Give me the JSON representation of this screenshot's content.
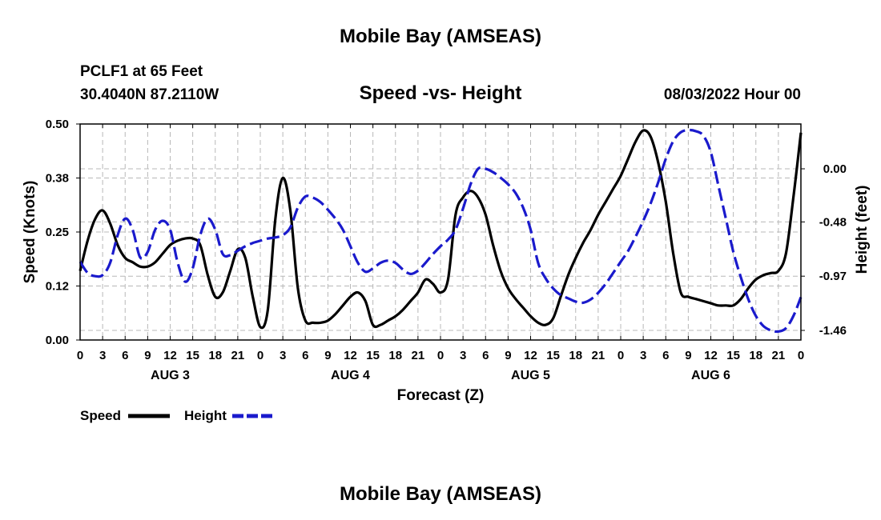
{
  "header": {
    "title": "Mobile Bay (AMSEAS)",
    "station": "PCLF1 at 65 Feet",
    "coords": "30.4040N  87.2110W",
    "date": "08/03/2022 Hour 00",
    "footer_title": "Mobile Bay (AMSEAS)"
  },
  "chart_data": {
    "type": "line",
    "title": "Speed -vs- Height",
    "xlabel": "Forecast (Z)",
    "ylabel": "Speed (Knots)",
    "y2label": "Height (feet)",
    "x_range_hours": [
      0,
      96
    ],
    "x_ticks": [
      {
        "h": 0,
        "label": "0"
      },
      {
        "h": 3,
        "label": "3"
      },
      {
        "h": 6,
        "label": "6"
      },
      {
        "h": 9,
        "label": "9"
      },
      {
        "h": 12,
        "label": "12"
      },
      {
        "h": 15,
        "label": "15"
      },
      {
        "h": 18,
        "label": "18"
      },
      {
        "h": 21,
        "label": "21"
      },
      {
        "h": 24,
        "label": "0"
      },
      {
        "h": 27,
        "label": "3"
      },
      {
        "h": 30,
        "label": "6"
      },
      {
        "h": 33,
        "label": "9"
      },
      {
        "h": 36,
        "label": "12"
      },
      {
        "h": 39,
        "label": "15"
      },
      {
        "h": 42,
        "label": "18"
      },
      {
        "h": 45,
        "label": "21"
      },
      {
        "h": 48,
        "label": "0"
      },
      {
        "h": 51,
        "label": "3"
      },
      {
        "h": 54,
        "label": "6"
      },
      {
        "h": 57,
        "label": "9"
      },
      {
        "h": 60,
        "label": "12"
      },
      {
        "h": 63,
        "label": "15"
      },
      {
        "h": 66,
        "label": "18"
      },
      {
        "h": 69,
        "label": "21"
      },
      {
        "h": 72,
        "label": "0"
      },
      {
        "h": 75,
        "label": "3"
      },
      {
        "h": 78,
        "label": "6"
      },
      {
        "h": 81,
        "label": "9"
      },
      {
        "h": 84,
        "label": "12"
      },
      {
        "h": 87,
        "label": "15"
      },
      {
        "h": 90,
        "label": "18"
      },
      {
        "h": 93,
        "label": "21"
      },
      {
        "h": 96,
        "label": "0"
      }
    ],
    "day_labels": [
      {
        "h": 12,
        "label": "AUG 3"
      },
      {
        "h": 36,
        "label": "AUG 4"
      },
      {
        "h": 60,
        "label": "AUG 5"
      },
      {
        "h": 84,
        "label": "AUG 6"
      }
    ],
    "y_left": {
      "min": 0,
      "max": 0.5,
      "ticks": [
        "0.00",
        "0.12",
        "0.25",
        "0.38",
        "0.50"
      ]
    },
    "y_right": {
      "ticks": [
        {
          "v": 0.0,
          "label": "0.00"
        },
        {
          "v": -0.48,
          "label": "-0.48"
        },
        {
          "v": -0.97,
          "label": "-0.97"
        },
        {
          "v": -1.46,
          "label": "-1.46"
        }
      ]
    },
    "series": [
      {
        "name": "Speed",
        "axis": "left",
        "color": "#000000",
        "dash": "solid",
        "x": [
          0,
          1,
          2,
          3,
          4,
          5,
          6,
          7,
          8,
          9,
          10,
          11,
          12,
          13,
          14,
          15,
          16,
          17,
          18,
          19,
          20,
          21,
          22,
          23,
          24,
          25,
          26,
          27,
          28,
          29,
          30,
          31,
          32,
          33,
          34,
          35,
          36,
          37,
          38,
          39,
          40,
          41,
          42,
          43,
          44,
          45,
          46,
          47,
          48,
          49,
          50,
          51,
          52,
          53,
          54,
          55,
          56,
          57,
          58,
          59,
          60,
          61,
          62,
          63,
          64,
          65,
          66,
          67,
          68,
          69,
          70,
          71,
          72,
          73,
          74,
          75,
          76,
          77,
          78,
          79,
          80,
          81,
          82,
          83,
          84,
          85,
          86,
          87,
          88,
          89,
          90,
          91,
          92,
          93,
          94,
          95,
          96
        ],
        "values": [
          0.16,
          0.23,
          0.28,
          0.3,
          0.27,
          0.22,
          0.19,
          0.18,
          0.17,
          0.17,
          0.18,
          0.2,
          0.22,
          0.23,
          0.235,
          0.235,
          0.22,
          0.15,
          0.1,
          0.11,
          0.16,
          0.21,
          0.19,
          0.1,
          0.03,
          0.07,
          0.28,
          0.375,
          0.3,
          0.12,
          0.045,
          0.04,
          0.04,
          0.045,
          0.06,
          0.08,
          0.1,
          0.11,
          0.09,
          0.035,
          0.035,
          0.045,
          0.055,
          0.07,
          0.09,
          0.11,
          0.14,
          0.13,
          0.11,
          0.14,
          0.29,
          0.33,
          0.345,
          0.33,
          0.29,
          0.22,
          0.16,
          0.12,
          0.095,
          0.075,
          0.055,
          0.04,
          0.035,
          0.05,
          0.1,
          0.15,
          0.19,
          0.225,
          0.255,
          0.29,
          0.32,
          0.35,
          0.38,
          0.42,
          0.46,
          0.485,
          0.47,
          0.41,
          0.32,
          0.2,
          0.11,
          0.1,
          0.095,
          0.09,
          0.085,
          0.08,
          0.08,
          0.08,
          0.095,
          0.12,
          0.14,
          0.15,
          0.155,
          0.16,
          0.2,
          0.33,
          0.48
        ]
      },
      {
        "name": "Height",
        "axis": "right",
        "color": "#1a1acc",
        "dash": "dashed",
        "x": [
          0,
          1,
          2,
          3,
          4,
          5,
          6,
          7,
          8,
          9,
          10,
          11,
          12,
          13,
          14,
          15,
          16,
          17,
          18,
          19,
          20,
          21,
          22,
          23,
          24,
          25,
          26,
          27,
          28,
          29,
          30,
          31,
          32,
          33,
          34,
          35,
          36,
          37,
          38,
          39,
          40,
          41,
          42,
          43,
          44,
          45,
          46,
          47,
          48,
          49,
          50,
          51,
          52,
          53,
          54,
          55,
          56,
          57,
          58,
          59,
          60,
          61,
          62,
          63,
          64,
          65,
          66,
          67,
          68,
          69,
          70,
          71,
          72,
          73,
          74,
          75,
          76,
          77,
          78,
          79,
          80,
          81,
          82,
          83,
          84,
          85,
          86,
          87,
          88,
          89,
          90,
          91,
          92,
          93,
          94,
          95,
          96
        ],
        "values": [
          -0.84,
          -0.94,
          -0.97,
          -0.96,
          -0.85,
          -0.6,
          -0.45,
          -0.55,
          -0.8,
          -0.75,
          -0.55,
          -0.47,
          -0.55,
          -0.85,
          -1.02,
          -0.9,
          -0.6,
          -0.45,
          -0.55,
          -0.77,
          -0.78,
          -0.74,
          -0.7,
          -0.67,
          -0.65,
          -0.63,
          -0.62,
          -0.6,
          -0.53,
          -0.35,
          -0.25,
          -0.26,
          -0.3,
          -0.37,
          -0.45,
          -0.55,
          -0.7,
          -0.85,
          -0.93,
          -0.9,
          -0.85,
          -0.83,
          -0.85,
          -0.91,
          -0.95,
          -0.92,
          -0.85,
          -0.77,
          -0.7,
          -0.64,
          -0.55,
          -0.36,
          -0.14,
          0.0,
          0.0,
          -0.03,
          -0.08,
          -0.14,
          -0.22,
          -0.35,
          -0.55,
          -0.85,
          -0.99,
          -1.08,
          -1.14,
          -1.17,
          -1.2,
          -1.21,
          -1.18,
          -1.12,
          -1.04,
          -0.94,
          -0.84,
          -0.74,
          -0.61,
          -0.47,
          -0.31,
          -0.12,
          0.09,
          0.25,
          0.33,
          0.35,
          0.34,
          0.3,
          0.15,
          -0.15,
          -0.45,
          -0.75,
          -0.98,
          -1.18,
          -1.33,
          -1.42,
          -1.46,
          -1.47,
          -1.44,
          -1.33,
          -1.16
        ]
      }
    ],
    "legend": [
      {
        "name": "Speed",
        "color": "#000000",
        "dash": "solid"
      },
      {
        "name": "Height",
        "color": "#1a1acc",
        "dash": "dashed"
      }
    ],
    "grid": true
  }
}
